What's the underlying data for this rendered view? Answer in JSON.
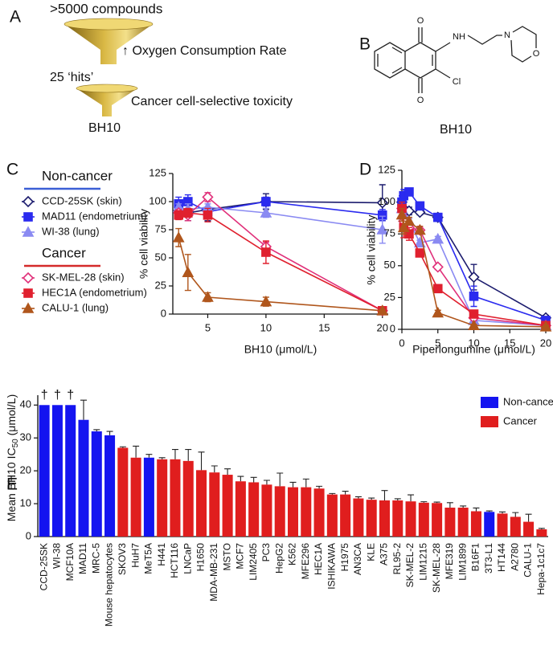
{
  "panel_a": {
    "label": "A",
    "top": ">5000 compounds",
    "screen": "↑ Oxygen Consumption Rate",
    "hits": "25 ‘hits’",
    "filter": "Cancer cell-selective toxicity",
    "result": "BH10"
  },
  "panel_b": {
    "label": "B",
    "atoms": [
      "O",
      "O",
      "NH",
      "Cl",
      "N",
      "O"
    ],
    "caption": "BH10"
  },
  "chart_data": [
    {
      "type": "line",
      "label": "C",
      "x_label": "BH10 (μmol/L)",
      "y_label": "% cell viability",
      "legend_headings": [
        "Non-cancer",
        "Cancer"
      ],
      "x": [
        2.5,
        3.3,
        5,
        10,
        20
      ],
      "xlim": [
        2,
        20.5
      ],
      "xticks": [
        5,
        10,
        15,
        20
      ],
      "ylim": [
        0,
        125
      ],
      "yticks": [
        0,
        25,
        50,
        75,
        100,
        125
      ],
      "series": [
        {
          "name": "CCD-25SK (skin)",
          "color": "#1c1c6e",
          "marker": "diamond-open",
          "values": [
            92,
            90,
            93,
            100,
            99
          ],
          "errors": [
            4,
            7,
            10,
            7,
            16
          ]
        },
        {
          "name": "MAD11 (endometrium)",
          "color": "#2b2bef",
          "marker": "square",
          "values": [
            98,
            100,
            91,
            100,
            88
          ],
          "errors": [
            6,
            6,
            4,
            4,
            5
          ]
        },
        {
          "name": "WI-38 (lung)",
          "color": "#8a8af2",
          "marker": "triangle",
          "values": [
            95,
            93,
            95,
            90,
            75
          ],
          "errors": [
            3,
            5,
            3,
            4,
            12
          ]
        },
        {
          "name": "SK-MEL-28 (skin)",
          "color": "#e0307a",
          "marker": "diamond-open",
          "values": [
            90,
            88,
            104,
            60,
            3
          ],
          "errors": [
            3,
            5,
            4,
            4,
            1
          ]
        },
        {
          "name": "HEC1A (endometrium)",
          "color": "#e0202e",
          "marker": "square",
          "values": [
            88,
            90,
            88,
            55,
            3
          ],
          "errors": [
            4,
            4,
            6,
            10,
            1
          ]
        },
        {
          "name": "CALU-1 (lung)",
          "color": "#b0561c",
          "marker": "triangle",
          "values": [
            68,
            37,
            15,
            11,
            3
          ],
          "errors": [
            8,
            16,
            4,
            4,
            1
          ]
        }
      ]
    },
    {
      "type": "line",
      "label": "D",
      "x_label": "Piperlongumine (μmol/L)",
      "y_label": "% cell viability",
      "x": [
        0,
        0.25,
        1,
        2.5,
        5,
        10,
        20
      ],
      "xlim": [
        0,
        20
      ],
      "xticks": [
        0,
        5,
        10,
        15,
        20
      ],
      "ylim": [
        0,
        125
      ],
      "yticks": [
        0,
        25,
        50,
        75,
        100,
        125
      ],
      "series": [
        {
          "color": "#1c1c6e",
          "marker": "diamond-open",
          "values": [
            100,
            95,
            93,
            92,
            88,
            41,
            9
          ],
          "errors": [
            5,
            5,
            3,
            2,
            2,
            10,
            2
          ]
        },
        {
          "color": "#2b2bef",
          "marker": "square",
          "values": [
            100,
            105,
            108,
            97,
            88,
            26,
            7
          ],
          "errors": [
            5,
            5,
            3,
            2,
            2,
            8,
            2
          ]
        },
        {
          "color": "#8a8af2",
          "marker": "triangle",
          "values": [
            95,
            90,
            85,
            68,
            71,
            7,
            3
          ],
          "errors": [
            3,
            3,
            2,
            2,
            2,
            2,
            1
          ]
        },
        {
          "color": "#e0307a",
          "marker": "diamond-open",
          "values": [
            95,
            85,
            80,
            78,
            49,
            9,
            3
          ],
          "errors": [
            3,
            5,
            3,
            2,
            2,
            2,
            1
          ]
        },
        {
          "color": "#e0202e",
          "marker": "square",
          "values": [
            95,
            80,
            75,
            60,
            32,
            12,
            3
          ],
          "errors": [
            5,
            8,
            5,
            3,
            2,
            3,
            1
          ]
        },
        {
          "color": "#b0561c",
          "marker": "triangle",
          "values": [
            90,
            80,
            85,
            78,
            13,
            3,
            2
          ],
          "errors": [
            5,
            5,
            3,
            3,
            2,
            1,
            1
          ]
        }
      ]
    },
    {
      "type": "bar",
      "label": "E",
      "y_label": [
        "Mean BH10 IC",
        "50",
        " (μmol/L)"
      ],
      "annotations": [
        "†",
        "†",
        "†"
      ],
      "categories": [
        "CCD-25SK",
        "WI-38",
        "MCF10A",
        "MAD11",
        "MRC-5",
        "Mouse hepatocytes",
        "SKOV3",
        "HuH7",
        "MeT5A",
        "H441",
        "HCT116",
        "LNCaP",
        "H1650",
        "MDA-MB-231",
        "MSTO",
        "MCF7",
        "LIM2405",
        "PC3",
        "HepG2",
        "K562",
        "MFE296",
        "HEC1A",
        "ISHIKAWA",
        "H1975",
        "AN3CA",
        "KLE",
        "A375",
        "RL95-2",
        "SK-MEL-2",
        "LIM1215",
        "SK-MEL-28",
        "MFE319",
        "LIM1899",
        "B16F1",
        "3T3-L1",
        "HT144",
        "A2780",
        "CALU-1",
        "Hepa-1c1c7"
      ],
      "ylim": [
        0,
        43
      ],
      "yticks": [
        0,
        10,
        20,
        30,
        40
      ],
      "series": [
        {
          "name": "Non-cancer",
          "color": "#1414f0",
          "values": [
            40,
            40,
            40,
            35.5,
            32,
            30.8,
            null,
            null,
            24,
            null,
            null,
            null,
            null,
            null,
            null,
            null,
            null,
            null,
            null,
            null,
            null,
            null,
            null,
            null,
            null,
            null,
            null,
            null,
            null,
            null,
            null,
            null,
            null,
            null,
            7.5,
            null,
            null,
            null,
            null
          ],
          "errors": [
            null,
            null,
            null,
            6,
            0.5,
            1.2,
            null,
            null,
            1,
            null,
            null,
            null,
            null,
            null,
            null,
            null,
            null,
            null,
            null,
            null,
            null,
            null,
            null,
            null,
            null,
            null,
            null,
            null,
            null,
            null,
            null,
            null,
            null,
            null,
            0.3,
            null,
            null,
            null,
            null
          ]
        },
        {
          "name": "Cancer",
          "color": "#e01e1e",
          "values": [
            null,
            null,
            null,
            null,
            null,
            null,
            27,
            24,
            null,
            23.5,
            23.5,
            23,
            20.2,
            19.5,
            18.8,
            16.8,
            16.5,
            15.8,
            15.3,
            15,
            15,
            14.6,
            12.8,
            12.8,
            11.6,
            11.2,
            11,
            11,
            10.7,
            10.3,
            10.2,
            8.8,
            8.8,
            7.7,
            null,
            7,
            6,
            4.5,
            2.2
          ],
          "errors": [
            null,
            null,
            null,
            null,
            null,
            null,
            0.3,
            3.5,
            null,
            0.5,
            3,
            3.5,
            5.5,
            2,
            1.8,
            1.5,
            1.5,
            1.3,
            4,
            1.5,
            2.5,
            0.7,
            0.3,
            1,
            0.5,
            0.5,
            3,
            0.5,
            2,
            0.3,
            0.3,
            1.5,
            0.5,
            1,
            null,
            0.5,
            1.3,
            2.3,
            0.3
          ]
        }
      ]
    }
  ]
}
